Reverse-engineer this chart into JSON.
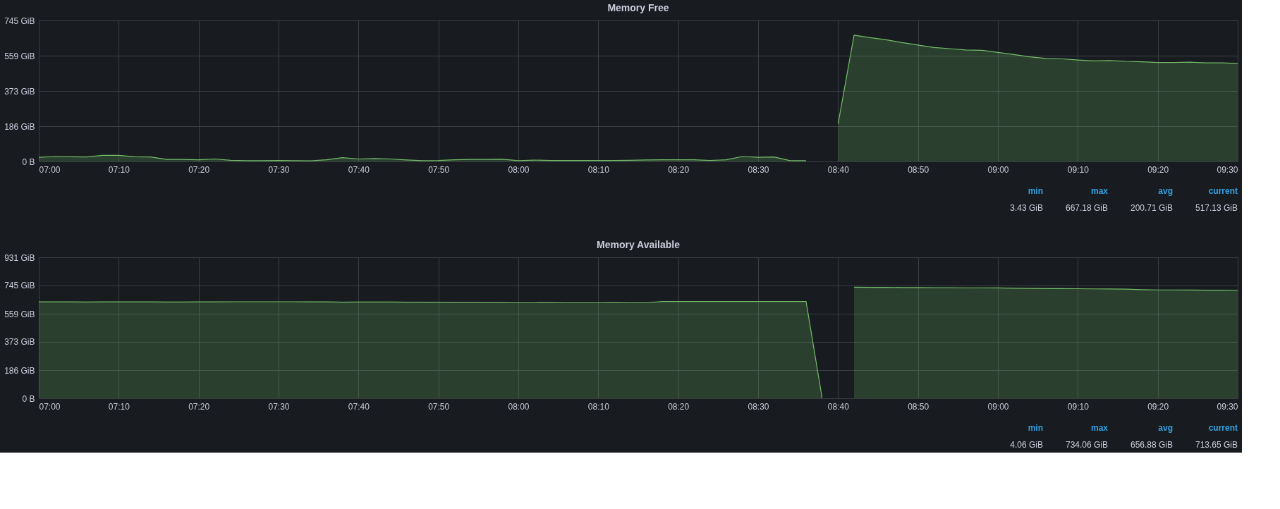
{
  "chart_data": [
    {
      "type": "area",
      "title": "Memory Free",
      "grid": true,
      "color": "#73bf69",
      "x": [
        7.0,
        7.0333,
        7.0667,
        7.1,
        7.1333,
        7.1667,
        7.2,
        7.2333,
        7.2667,
        7.3,
        7.3333,
        7.3667,
        7.4,
        7.4333,
        7.4667,
        7.5,
        7.5333,
        7.5667,
        7.6,
        7.6333,
        7.6667,
        7.7,
        7.7333,
        7.7667,
        7.8,
        7.8333,
        7.8667,
        7.9,
        7.9333,
        7.9667,
        8.0,
        8.0333,
        8.0667,
        8.1,
        8.1333,
        8.1667,
        8.2,
        8.2333,
        8.2667,
        8.3,
        8.3333,
        8.3667,
        8.4,
        8.4333,
        8.4667,
        8.5,
        8.5333,
        8.5667,
        8.6,
        8.6333,
        8.6667,
        8.7,
        8.7333,
        8.7667,
        8.8,
        8.8333,
        8.8667,
        8.9,
        8.9333,
        8.9667,
        9.0,
        9.0333,
        9.0667,
        9.1,
        9.1333,
        9.1667,
        9.2,
        9.2333,
        9.2667,
        9.3,
        9.3333,
        9.3667,
        9.4,
        9.4333,
        9.4667,
        9.5
      ],
      "values": [
        22,
        26,
        25,
        24,
        32,
        32,
        25,
        24,
        11,
        11,
        9,
        13,
        6,
        4,
        4,
        5,
        4,
        3.43,
        9,
        20,
        13,
        15,
        13,
        8,
        4,
        5,
        9,
        11,
        11,
        12,
        4,
        7,
        5,
        5,
        5,
        5,
        5,
        6,
        8,
        9,
        9,
        9,
        5,
        9,
        26,
        22,
        24,
        4,
        4,
        null,
        198,
        667.18,
        654,
        643,
        628,
        615,
        602,
        596,
        589,
        587,
        576,
        565,
        553,
        544,
        542,
        536,
        531,
        533,
        529,
        527,
        523,
        523,
        525,
        521,
        521,
        517.13
      ],
      "xlim": [
        7,
        9.5
      ],
      "xticks": [
        {
          "value": 7,
          "label": "07:00"
        },
        {
          "value": 7.1667,
          "label": "07:10"
        },
        {
          "value": 7.3333,
          "label": "07:20"
        },
        {
          "value": 7.5,
          "label": "07:30"
        },
        {
          "value": 7.6667,
          "label": "07:40"
        },
        {
          "value": 7.8333,
          "label": "07:50"
        },
        {
          "value": 8,
          "label": "08:00"
        },
        {
          "value": 8.1667,
          "label": "08:10"
        },
        {
          "value": 8.3333,
          "label": "08:20"
        },
        {
          "value": 8.5,
          "label": "08:30"
        },
        {
          "value": 8.6667,
          "label": "08:40"
        },
        {
          "value": 8.8333,
          "label": "08:50"
        },
        {
          "value": 9,
          "label": "09:00"
        },
        {
          "value": 9.1667,
          "label": "09:10"
        },
        {
          "value": 9.3333,
          "label": "09:20"
        },
        {
          "value": 9.5,
          "label": "09:30"
        }
      ],
      "ylim": [
        0,
        745.06
      ],
      "yticks": [
        {
          "value": 0,
          "label": "0 B"
        },
        {
          "value": 186.26,
          "label": "186 GiB"
        },
        {
          "value": 372.53,
          "label": "373 GiB"
        },
        {
          "value": 558.79,
          "label": "559 GiB"
        },
        {
          "value": 745.06,
          "label": "745 GiB"
        }
      ],
      "annotations": [
        "min",
        "max",
        "avg",
        "current",
        "3.43 GiB",
        "667.18 GiB",
        "200.71 GiB",
        "517.13 GiB"
      ]
    },
    {
      "type": "area",
      "title": "Memory Available",
      "grid": true,
      "color": "#73bf69",
      "x": [
        7.0,
        7.0333,
        7.0667,
        7.1,
        7.1333,
        7.1667,
        7.2,
        7.2333,
        7.2667,
        7.3,
        7.3333,
        7.3667,
        7.4,
        7.4333,
        7.4667,
        7.5,
        7.5333,
        7.5667,
        7.6,
        7.6333,
        7.6667,
        7.7,
        7.7333,
        7.7667,
        7.8,
        7.8333,
        7.8667,
        7.9,
        7.9333,
        7.9667,
        8.0,
        8.0333,
        8.0667,
        8.1,
        8.1333,
        8.1667,
        8.2,
        8.2333,
        8.2667,
        8.3,
        8.3333,
        8.3667,
        8.4,
        8.4333,
        8.4667,
        8.5,
        8.5333,
        8.5667,
        8.6,
        8.6333,
        8.6667,
        8.7,
        8.7333,
        8.7667,
        8.8,
        8.8333,
        8.8667,
        8.9,
        8.9333,
        8.9667,
        9.0,
        9.0333,
        9.0667,
        9.1,
        9.1333,
        9.1667,
        9.2,
        9.2333,
        9.2667,
        9.3,
        9.3333,
        9.3667,
        9.4,
        9.4333,
        9.4667,
        9.5
      ],
      "values": [
        637,
        637,
        637,
        636,
        637,
        637,
        637,
        637,
        636,
        636,
        637,
        637,
        638,
        638,
        638,
        638,
        638,
        637,
        637,
        635,
        636,
        636,
        636,
        635,
        634,
        634,
        633,
        633,
        632,
        632,
        631,
        631,
        632,
        631,
        631,
        631,
        632,
        631,
        631,
        640,
        640,
        640,
        640,
        640,
        640,
        640,
        640,
        640,
        640,
        4.06,
        null,
        734.06,
        733,
        733,
        732,
        732,
        731,
        731,
        730,
        730,
        729,
        727,
        726,
        725,
        725,
        724,
        723,
        722,
        721,
        718,
        716,
        716,
        715,
        714,
        714,
        713.65
      ],
      "xlim": [
        7,
        9.5
      ],
      "xticks": [
        {
          "value": 7,
          "label": "07:00"
        },
        {
          "value": 7.1667,
          "label": "07:10"
        },
        {
          "value": 7.3333,
          "label": "07:20"
        },
        {
          "value": 7.5,
          "label": "07:30"
        },
        {
          "value": 7.6667,
          "label": "07:40"
        },
        {
          "value": 7.8333,
          "label": "07:50"
        },
        {
          "value": 8,
          "label": "08:00"
        },
        {
          "value": 8.1667,
          "label": "08:10"
        },
        {
          "value": 8.3333,
          "label": "08:20"
        },
        {
          "value": 8.5,
          "label": "08:30"
        },
        {
          "value": 8.6667,
          "label": "08:40"
        },
        {
          "value": 8.8333,
          "label": "08:50"
        },
        {
          "value": 9,
          "label": "09:00"
        },
        {
          "value": 9.1667,
          "label": "09:10"
        },
        {
          "value": 9.3333,
          "label": "09:20"
        },
        {
          "value": 9.5,
          "label": "09:30"
        }
      ],
      "ylim": [
        0,
        931.32
      ],
      "yticks": [
        {
          "value": 0,
          "label": "0 B"
        },
        {
          "value": 186.26,
          "label": "186 GiB"
        },
        {
          "value": 372.53,
          "label": "373 GiB"
        },
        {
          "value": 558.79,
          "label": "559 GiB"
        },
        {
          "value": 745.06,
          "label": "745 GiB"
        },
        {
          "value": 931.32,
          "label": "931 GiB"
        }
      ],
      "annotations": [
        "min",
        "max",
        "avg",
        "current",
        "4.06 GiB",
        "734.06 GiB",
        "656.88 GiB",
        "713.65 GiB"
      ]
    }
  ]
}
